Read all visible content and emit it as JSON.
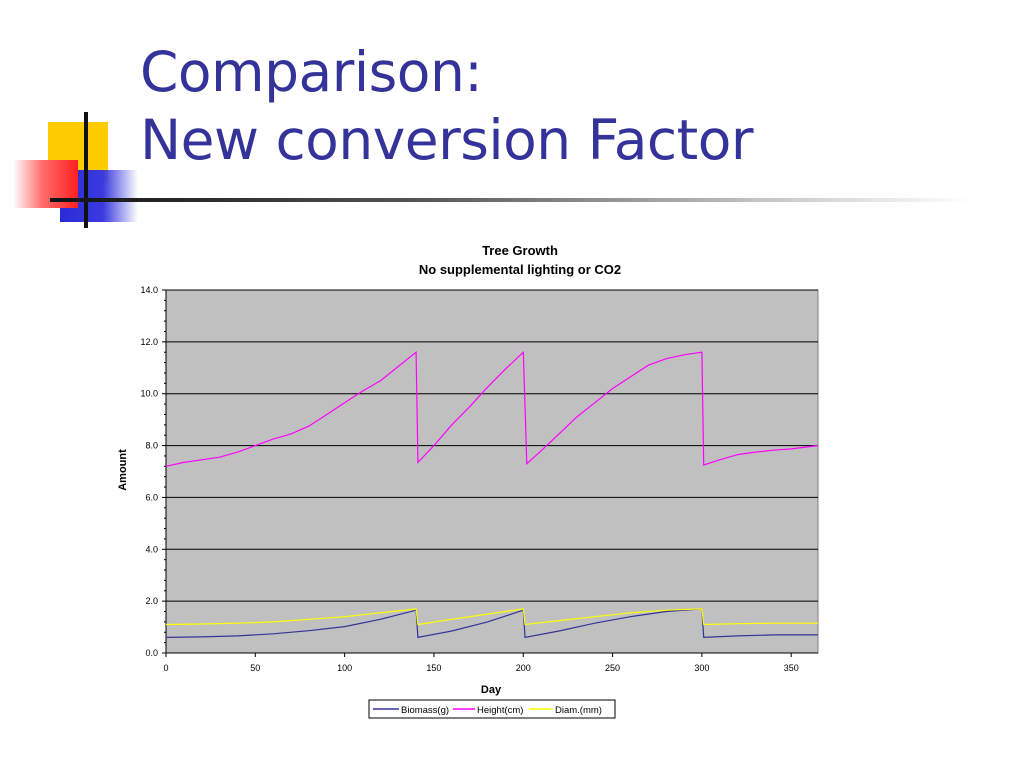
{
  "slide": {
    "title_line1": "Comparison:",
    "title_line2": "New conversion Factor"
  },
  "colors": {
    "title": "#333399",
    "plot_bg": "#c0c0c0",
    "biomass": "#333399",
    "height": "#ff00ff",
    "diam": "#ffff00"
  },
  "chart_data": {
    "type": "line",
    "title": "Tree Growth",
    "subtitle": "No supplemental lighting or CO2",
    "xlabel": "Day",
    "ylabel": "Amount",
    "xlim": [
      0,
      365
    ],
    "ylim": [
      0,
      14
    ],
    "x_ticks": [
      0,
      50,
      100,
      150,
      200,
      250,
      300,
      350
    ],
    "x_tick_labels": [
      "0",
      "50",
      "100",
      "150",
      "200",
      "250",
      "300",
      "350"
    ],
    "y_ticks": [
      0,
      2,
      4,
      6,
      8,
      10,
      12,
      14
    ],
    "y_tick_labels": [
      "0.0",
      "2.0",
      "4.0",
      "6.0",
      "8.0",
      "10.0",
      "12.0",
      "14.0"
    ],
    "grid": "horizontal",
    "legend_position": "bottom",
    "series": [
      {
        "name": "Biomass(g)",
        "color": "#333399",
        "points": [
          [
            0,
            0.6
          ],
          [
            20,
            0.62
          ],
          [
            40,
            0.66
          ],
          [
            60,
            0.74
          ],
          [
            80,
            0.86
          ],
          [
            100,
            1.02
          ],
          [
            120,
            1.3
          ],
          [
            140,
            1.65
          ],
          [
            141,
            0.6
          ],
          [
            160,
            0.85
          ],
          [
            180,
            1.2
          ],
          [
            200,
            1.65
          ],
          [
            201,
            0.6
          ],
          [
            220,
            0.85
          ],
          [
            240,
            1.15
          ],
          [
            260,
            1.4
          ],
          [
            280,
            1.6
          ],
          [
            300,
            1.7
          ],
          [
            301,
            0.6
          ],
          [
            320,
            0.66
          ],
          [
            340,
            0.7
          ],
          [
            365,
            0.7
          ]
        ]
      },
      {
        "name": "Height(cm)",
        "color": "#ff00ff",
        "points": [
          [
            0,
            7.2
          ],
          [
            10,
            7.35
          ],
          [
            20,
            7.45
          ],
          [
            30,
            7.55
          ],
          [
            40,
            7.75
          ],
          [
            50,
            8.0
          ],
          [
            60,
            8.25
          ],
          [
            70,
            8.45
          ],
          [
            80,
            8.75
          ],
          [
            90,
            9.2
          ],
          [
            100,
            9.65
          ],
          [
            110,
            10.1
          ],
          [
            120,
            10.5
          ],
          [
            130,
            11.05
          ],
          [
            140,
            11.6
          ],
          [
            141,
            7.35
          ],
          [
            150,
            8.0
          ],
          [
            160,
            8.8
          ],
          [
            170,
            9.5
          ],
          [
            180,
            10.25
          ],
          [
            190,
            10.95
          ],
          [
            200,
            11.6
          ],
          [
            202,
            7.3
          ],
          [
            210,
            7.8
          ],
          [
            220,
            8.45
          ],
          [
            230,
            9.1
          ],
          [
            240,
            9.65
          ],
          [
            250,
            10.2
          ],
          [
            260,
            10.65
          ],
          [
            270,
            11.1
          ],
          [
            280,
            11.35
          ],
          [
            290,
            11.5
          ],
          [
            300,
            11.6
          ],
          [
            301,
            7.25
          ],
          [
            310,
            7.45
          ],
          [
            320,
            7.65
          ],
          [
            330,
            7.75
          ],
          [
            340,
            7.82
          ],
          [
            350,
            7.87
          ],
          [
            365,
            8.0
          ]
        ]
      },
      {
        "name": "Diam.(mm)",
        "color": "#ffff00",
        "points": [
          [
            0,
            1.1
          ],
          [
            20,
            1.12
          ],
          [
            40,
            1.15
          ],
          [
            60,
            1.2
          ],
          [
            80,
            1.3
          ],
          [
            100,
            1.4
          ],
          [
            120,
            1.55
          ],
          [
            140,
            1.7
          ],
          [
            141,
            1.1
          ],
          [
            160,
            1.3
          ],
          [
            180,
            1.5
          ],
          [
            200,
            1.7
          ],
          [
            201,
            1.1
          ],
          [
            220,
            1.25
          ],
          [
            240,
            1.4
          ],
          [
            260,
            1.55
          ],
          [
            280,
            1.65
          ],
          [
            300,
            1.7
          ],
          [
            301,
            1.1
          ],
          [
            320,
            1.13
          ],
          [
            340,
            1.15
          ],
          [
            365,
            1.15
          ]
        ]
      }
    ]
  }
}
